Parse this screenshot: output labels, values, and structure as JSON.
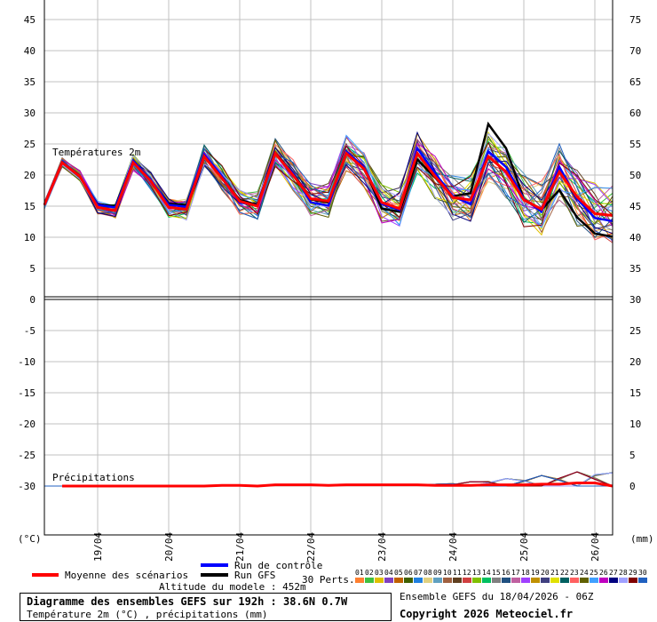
{
  "chart_data": [
    {
      "type": "line",
      "panel_label": "Températures 2m",
      "x_ticks": [
        "19/04",
        "20/04",
        "21/04",
        "22/04",
        "23/04",
        "24/04",
        "25/04",
        "26/04"
      ],
      "left_ticks": [
        "45",
        "40",
        "35",
        "30",
        "25",
        "20",
        "15",
        "10",
        "5",
        "0",
        "-5",
        "-10",
        "-15",
        "-20",
        "-25",
        "-30"
      ],
      "right_ticks": [
        "75",
        "70",
        "65",
        "60",
        "55",
        "50",
        "45",
        "40",
        "35",
        "30",
        "25",
        "20",
        "15",
        "10",
        "5",
        "0"
      ],
      "ylim": [
        -35,
        47
      ],
      "left_unit": "(°C)",
      "right_unit": "(mm)",
      "grid": true,
      "x_hours": [
        0,
        6,
        12,
        18,
        24,
        30,
        36,
        42,
        48,
        54,
        60,
        66,
        72,
        78,
        84,
        90,
        96,
        102,
        108,
        114,
        120,
        126,
        132,
        138,
        144,
        150,
        156,
        162,
        168,
        174,
        180,
        186,
        192
      ],
      "series": [
        {
          "name": "Moyenne des scénarios",
          "color": "#ff0000",
          "width": 3,
          "values": [
            15.2,
            22,
            19.8,
            14.8,
            14.3,
            22,
            19,
            14.8,
            14.5,
            23,
            19.5,
            15.8,
            15,
            23.5,
            20,
            16.2,
            15.8,
            23.5,
            21,
            15.6,
            14.6,
            23.5,
            19.8,
            16.4,
            16,
            23,
            20.5,
            16,
            14.5,
            20.5,
            16.5,
            13.8,
            13.5
          ]
        },
        {
          "name": "Run de contrôle",
          "color": "#0000ff",
          "width": 2.5,
          "values": [
            15.2,
            22,
            19.8,
            15.2,
            14.8,
            22.3,
            19.2,
            15.2,
            14.9,
            23.3,
            19.8,
            15.6,
            15.1,
            23.4,
            20.3,
            15.6,
            15.1,
            23.8,
            21.3,
            15.4,
            14.4,
            24.3,
            20.3,
            16.6,
            15.3,
            23.8,
            21.3,
            16.2,
            14.1,
            21.3,
            16.2,
            13.1,
            12.6
          ]
        },
        {
          "name": "Run GFS",
          "color": "#000000",
          "width": 2.5,
          "values": [
            15.2,
            22,
            19.7,
            15.3,
            15,
            22.2,
            19,
            15.4,
            15.2,
            23,
            19.6,
            16,
            15.2,
            23.6,
            20.3,
            16.1,
            15.6,
            23.6,
            21.3,
            14.6,
            14.1,
            22.5,
            19.6,
            16.6,
            17.1,
            28.2,
            24.3,
            16.1,
            14.4,
            17.6,
            13.2,
            10.6,
            10.1
          ]
        }
      ]
    },
    {
      "type": "line",
      "panel_label": "Précipitations",
      "unit": "mm",
      "x_hours": [
        0,
        6,
        12,
        18,
        24,
        30,
        36,
        42,
        48,
        54,
        60,
        66,
        72,
        78,
        84,
        90,
        96,
        102,
        108,
        114,
        120,
        126,
        132,
        138,
        144,
        150,
        156,
        162,
        168,
        174,
        180,
        186,
        192
      ],
      "series": [
        {
          "name": "Moyenne des scénarios",
          "color": "#ff0000",
          "width": 3,
          "values": [
            0,
            0,
            0,
            0,
            0,
            0,
            0,
            0,
            0,
            0,
            0.1,
            0.1,
            0,
            0.2,
            0.2,
            0.2,
            0.1,
            0.2,
            0.2,
            0.2,
            0.2,
            0.2,
            0.1,
            0.1,
            0.1,
            0.2,
            0.2,
            0.2,
            0.3,
            0.3,
            0.5,
            0.5,
            0
          ]
        }
      ]
    }
  ],
  "ensemble": {
    "perturbations": [
      {
        "id": "01",
        "color": "#ff8030"
      },
      {
        "id": "02",
        "color": "#40c040"
      },
      {
        "id": "03",
        "color": "#e0c000"
      },
      {
        "id": "04",
        "color": "#8040c0"
      },
      {
        "id": "05",
        "color": "#c06000"
      },
      {
        "id": "06",
        "color": "#406000"
      },
      {
        "id": "07",
        "color": "#2080e0"
      },
      {
        "id": "08",
        "color": "#e0d080"
      },
      {
        "id": "09",
        "color": "#60a0c0"
      },
      {
        "id": "10",
        "color": "#a06040"
      },
      {
        "id": "11",
        "color": "#604020"
      },
      {
        "id": "12",
        "color": "#d04040"
      },
      {
        "id": "13",
        "color": "#80c000"
      },
      {
        "id": "14",
        "color": "#00c060"
      },
      {
        "id": "15",
        "color": "#808080"
      },
      {
        "id": "16",
        "color": "#205080"
      },
      {
        "id": "17",
        "color": "#c060a0"
      },
      {
        "id": "18",
        "color": "#a040ff"
      },
      {
        "id": "19",
        "color": "#c09000"
      },
      {
        "id": "20",
        "color": "#404080"
      },
      {
        "id": "21",
        "color": "#e0e000"
      },
      {
        "id": "22",
        "color": "#006060"
      },
      {
        "id": "23",
        "color": "#ff6060"
      },
      {
        "id": "24",
        "color": "#606000"
      },
      {
        "id": "25",
        "color": "#40a0ff"
      },
      {
        "id": "26",
        "color": "#c000c0"
      },
      {
        "id": "27",
        "color": "#000080"
      },
      {
        "id": "28",
        "color": "#a0a0ff"
      },
      {
        "id": "29",
        "color": "#800000"
      },
      {
        "id": "30",
        "color": "#2060c0"
      }
    ]
  },
  "legend": {
    "mean": "Moyenne des scénarios",
    "control": "Run de contrôle",
    "gfs": "Run GFS",
    "perts": "30 Perts.",
    "altitude": "Altitude du modele : 452m"
  },
  "footer": {
    "title": "Diagramme des ensembles GEFS sur 192h : 38.6N 0.7W",
    "subtitle": "Température 2m (°C) , précipitations (mm)",
    "run": "Ensemble GEFS du 18/04/2026 - 06Z",
    "copyright": "Copyright 2026 Meteociel.fr"
  }
}
